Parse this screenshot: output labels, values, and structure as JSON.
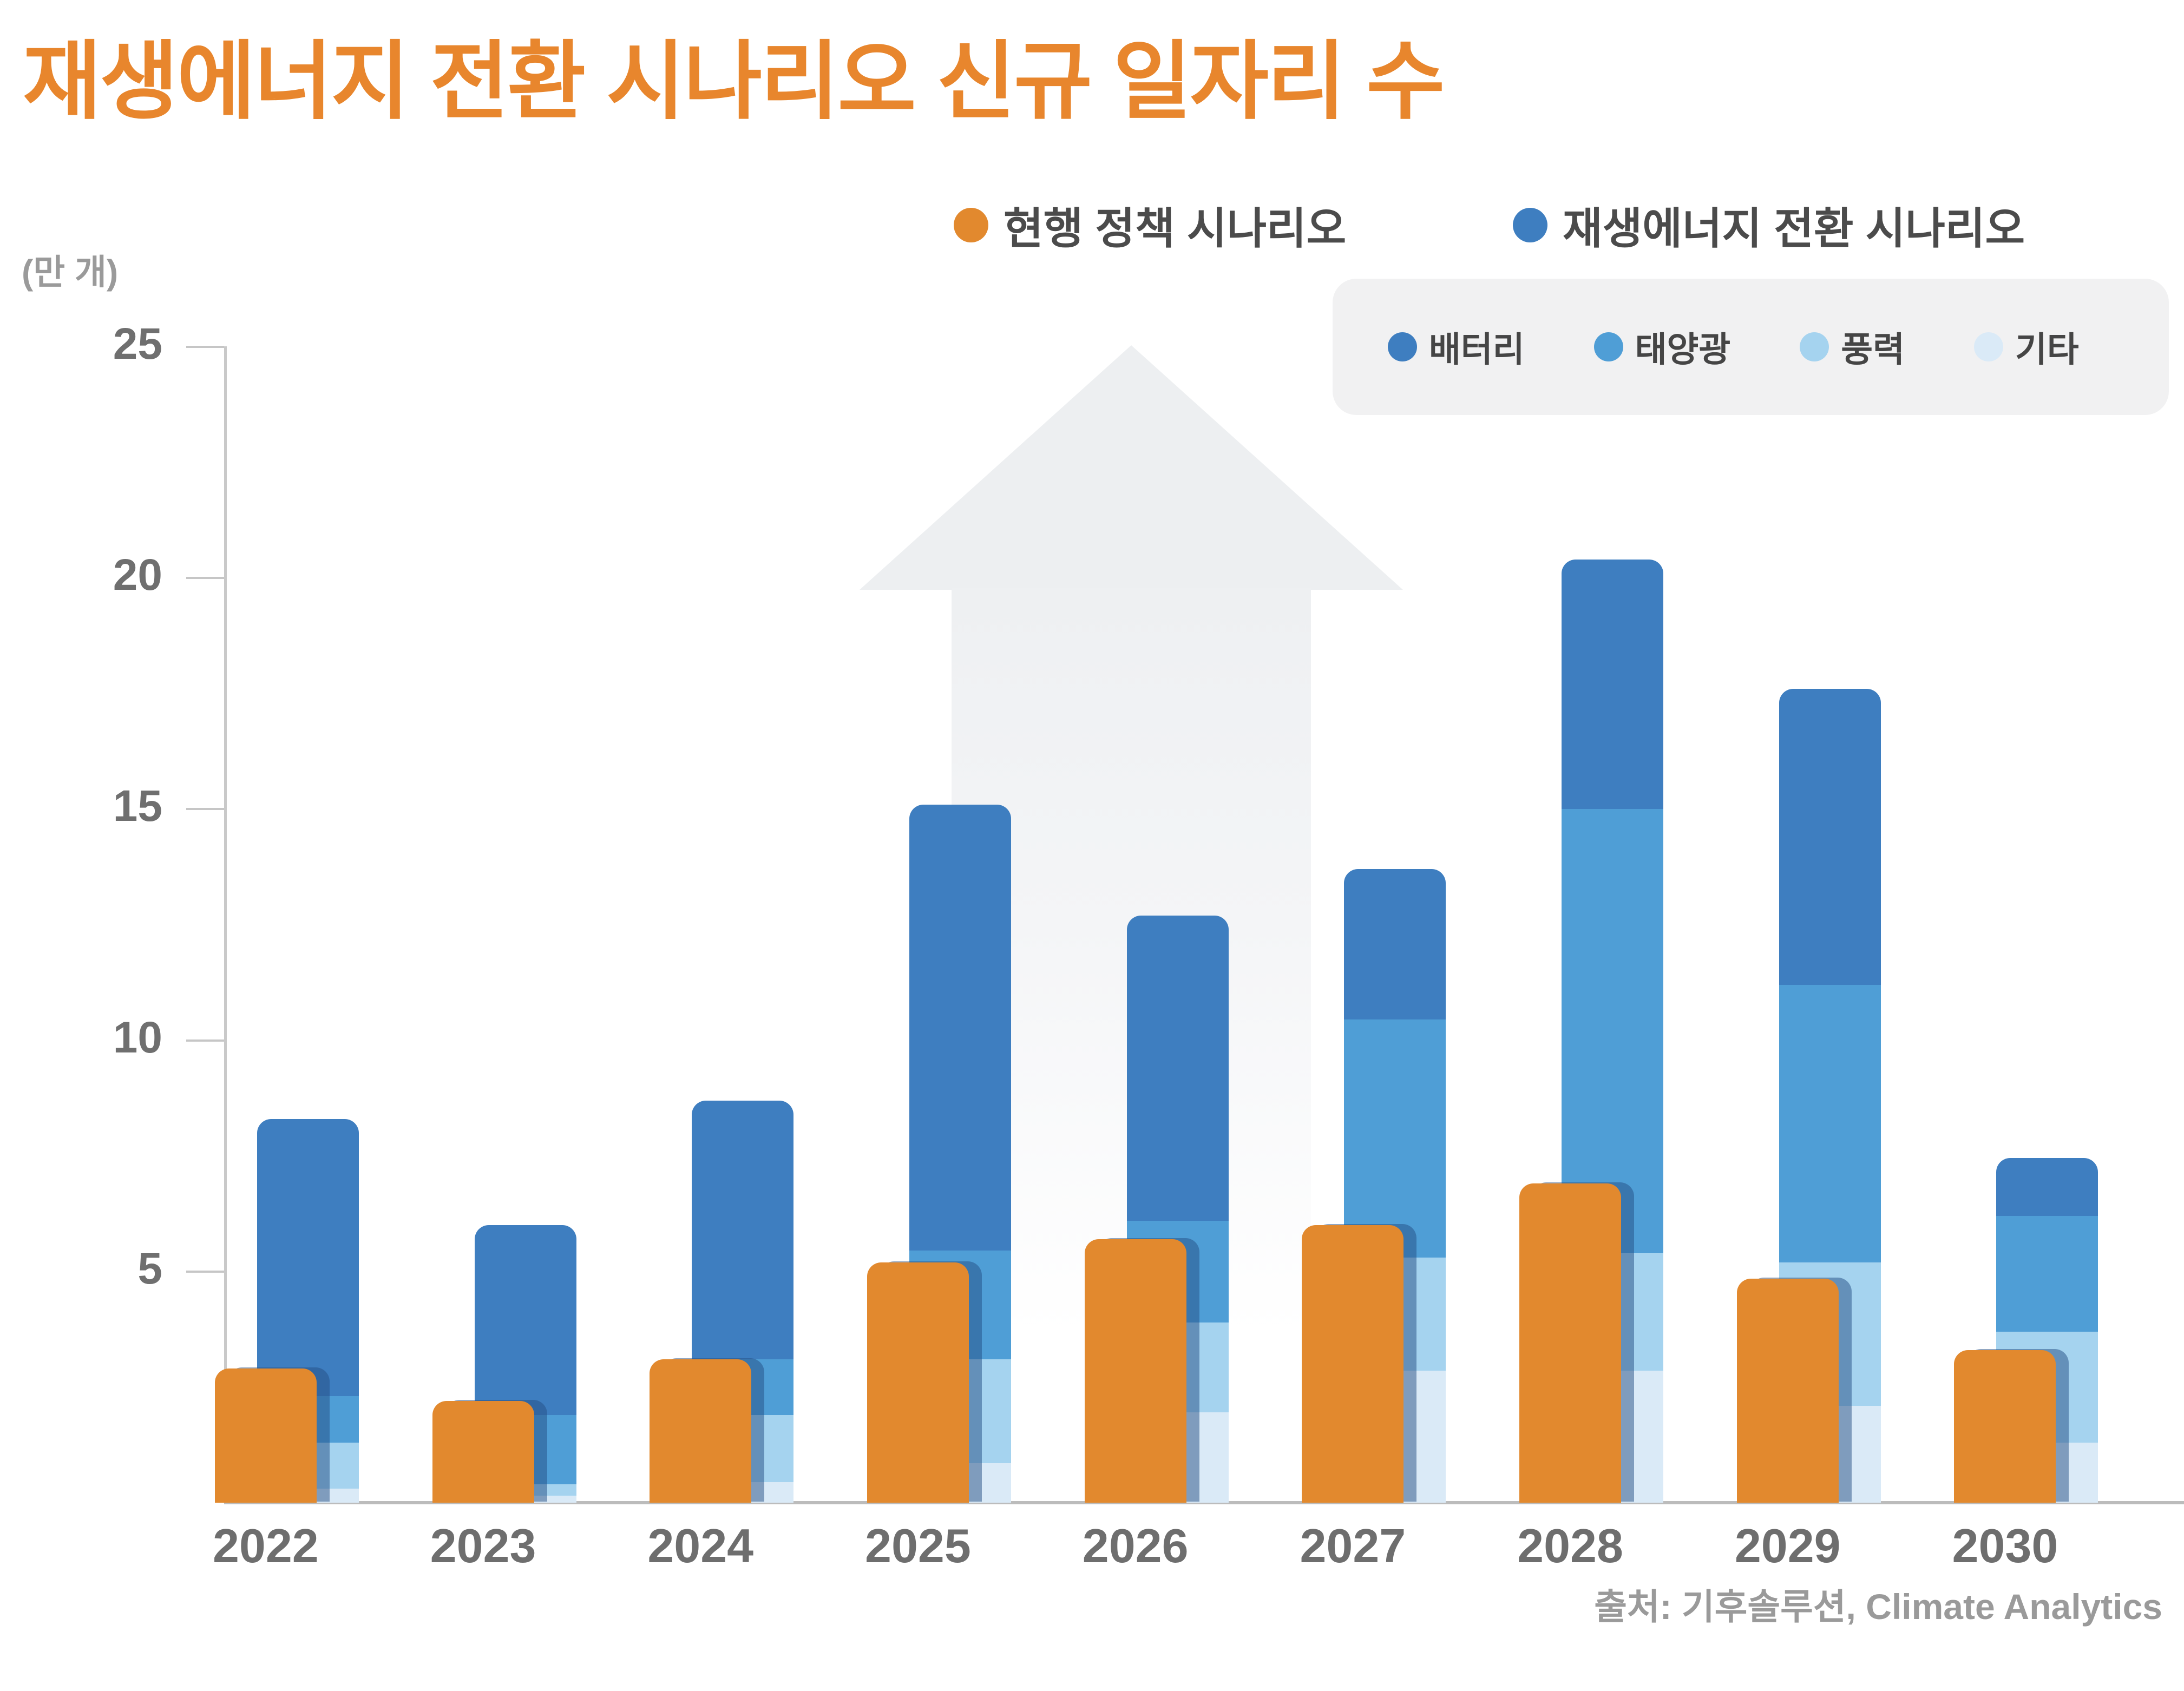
{
  "title": "재생에너지 전환 시나리오 신규 일자리 수",
  "legend": {
    "current": {
      "label": "현행 정책 시나리오",
      "color": "#E2892E"
    },
    "transition": {
      "label": "재생에너지 전환 시나리오",
      "color": "#3E7EC0"
    }
  },
  "source": "출처: 기후솔루션, Climate Analytics",
  "chart_data": {
    "type": "bar",
    "title": "재생에너지 전환 시나리오 신규 일자리 수",
    "unit_label": "(만 개)",
    "ylabel": "(만 개)",
    "ylim": [
      0,
      25
    ],
    "y_ticks": [
      25,
      20,
      15,
      10,
      5
    ],
    "grid": false,
    "legend_position": "top-right",
    "categories": [
      "2022",
      "2023",
      "2024",
      "2025",
      "2026",
      "2027",
      "2028",
      "2029",
      "2030"
    ],
    "series": [
      {
        "name": "현행 정책 시나리오",
        "type": "bar",
        "color": "#E2892E",
        "values": [
          2.9,
          2.2,
          3.1,
          5.2,
          5.7,
          6.0,
          6.9,
          4.85,
          3.3
        ]
      },
      {
        "name": "재생에너지 전환 시나리오",
        "type": "stacked-bar",
        "color": "#3E7EC0",
        "totals": [
          8.3,
          6.0,
          8.7,
          15.1,
          12.7,
          13.7,
          20.4,
          17.6,
          7.45
        ],
        "segments": [
          {
            "name": "기타",
            "color": "#DAEAF7",
            "values": [
              0.3,
              0.15,
              0.45,
              0.85,
              1.95,
              2.85,
              2.85,
              2.1,
              1.3
            ]
          },
          {
            "name": "풍력",
            "color": "#A5D3EF",
            "values": [
              1.0,
              0.25,
              1.45,
              2.25,
              1.95,
              2.45,
              2.55,
              3.1,
              2.4
            ]
          },
          {
            "name": "태양광",
            "color": "#4F9ED6",
            "values": [
              1.0,
              1.5,
              1.2,
              2.35,
              2.2,
              5.15,
              9.6,
              6.0,
              2.5
            ]
          },
          {
            "name": "배터리",
            "color": "#3E7EC0",
            "values": [
              6.0,
              4.1,
              5.6,
              9.65,
              6.6,
              3.25,
              5.4,
              6.4,
              1.25
            ]
          }
        ]
      }
    ]
  }
}
